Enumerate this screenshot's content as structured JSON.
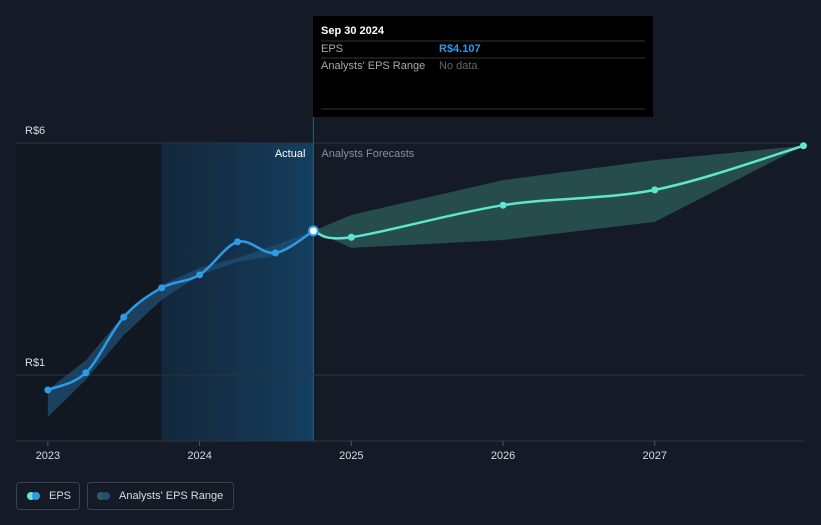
{
  "chart_data": {
    "type": "line",
    "x": [
      2023,
      2023.25,
      2023.5,
      2023.75,
      2024,
      2024.25,
      2024.5,
      2024.75,
      2025,
      2026,
      2027,
      2027.98
    ],
    "xlim": [
      2022.79,
      2027.99
    ],
    "xticks": [
      2023,
      2024,
      2025,
      2026,
      2027
    ],
    "ylim": [
      -0.42,
      6
    ],
    "yticks": [
      {
        "value": 1,
        "label": "R$1"
      },
      {
        "value": 6,
        "label": "R$6"
      }
    ],
    "grid": true,
    "log_scale": false,
    "divider": 2024.75,
    "divider_labels": [
      "Actual",
      "Analysts Forecasts"
    ],
    "series": [
      {
        "name": "EPS",
        "color": "#2e9be6",
        "forecast_color": "#5ee6d0",
        "values": [
          0.68,
          1.05,
          2.25,
          2.88,
          3.16,
          3.87,
          3.63,
          4.107,
          3.97,
          4.66,
          4.99,
          5.94
        ]
      }
    ],
    "range": {
      "name": "Analysts' EPS Range",
      "color": "#1f4f73",
      "forecast_color": "#2e5e5a",
      "low": [
        0.1,
        0.9,
        1.86,
        2.62,
        3.16,
        3.44,
        3.57,
        4.107,
        3.74,
        3.91,
        4.3,
        5.94
      ],
      "high": [
        0.68,
        1.32,
        2.29,
        2.94,
        3.31,
        3.52,
        3.8,
        4.107,
        4.45,
        5.2,
        5.63,
        5.94
      ]
    },
    "tooltip": {
      "title": "Sep 30 2024",
      "rows": [
        {
          "label": "EPS",
          "value": "R$4.107"
        },
        {
          "label": "Analysts' EPS Range",
          "value": "No data"
        }
      ]
    }
  }
}
